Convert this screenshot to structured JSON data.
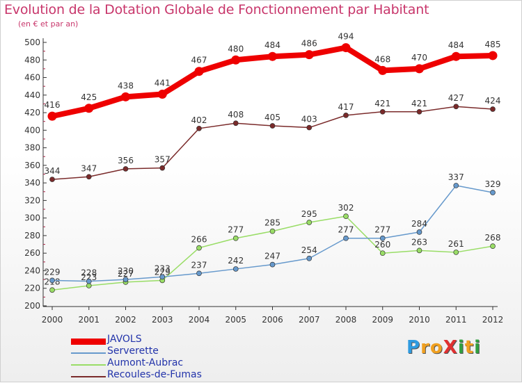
{
  "title": "Evolution de la Dotation Globale de Fonctionnement par Habitant",
  "subtitle": "(en € et par an)",
  "logo": {
    "text": "ProXiti",
    "letters": [
      "P",
      "r",
      "o",
      "X",
      "i",
      "t",
      "i"
    ],
    "colors": [
      "#2f9be0",
      "#f0a020",
      "#f0a020",
      "#e03030",
      "#30a040",
      "#f0a020",
      "#30a040"
    ]
  },
  "chart_data": {
    "type": "line",
    "title": "Evolution de la Dotation Globale de Fonctionnement par Habitant",
    "ylabel": "(en € et par an)",
    "xlabel": "",
    "categories": [
      "2000",
      "2001",
      "2002",
      "2003",
      "2004",
      "2005",
      "2006",
      "2007",
      "2008",
      "2009",
      "2010",
      "2011",
      "2012"
    ],
    "ylim": [
      200,
      500
    ],
    "yticks": [
      "200",
      "220",
      "240",
      "260",
      "280",
      "300",
      "320",
      "340",
      "360",
      "380",
      "400",
      "420",
      "440",
      "460",
      "480",
      "500"
    ],
    "grid": false,
    "legend_position": "bottom-left",
    "series": [
      {
        "name": "JAVOLS",
        "color": "#ee0000",
        "values": [
          416,
          425,
          438,
          441,
          467,
          480,
          484,
          486,
          494,
          468,
          470,
          484,
          485
        ]
      },
      {
        "name": "Serverette",
        "color": "#6699cc",
        "values": [
          229,
          228,
          230,
          233,
          237,
          242,
          247,
          254,
          277,
          277,
          284,
          337,
          329
        ]
      },
      {
        "name": "Aumont-Aubrac",
        "color": "#99dd66",
        "values": [
          218,
          223,
          227,
          229,
          266,
          277,
          285,
          295,
          302,
          260,
          263,
          261,
          268
        ]
      },
      {
        "name": "Recoules-de-Fumas",
        "color": "#7a2a2a",
        "values": [
          344,
          347,
          356,
          357,
          402,
          408,
          405,
          403,
          417,
          421,
          421,
          427,
          424
        ]
      }
    ]
  }
}
